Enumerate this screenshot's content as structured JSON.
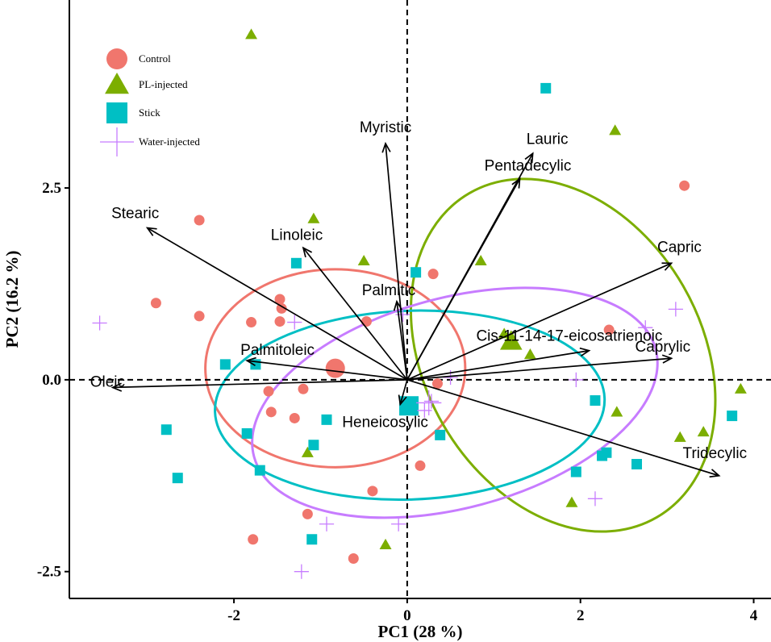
{
  "chart_data": {
    "type": "scatter",
    "title": "",
    "xlabel": "PC1 (28 %)",
    "ylabel": "PC2 (16.2 %)",
    "xlim": [
      -3.9,
      4.2
    ],
    "ylim": [
      -2.85,
      4.95
    ],
    "xticks": [
      -2,
      0,
      2,
      4
    ],
    "xtick_labels": [
      "-2",
      "0",
      "2",
      "4"
    ],
    "yticks": [
      -2.5,
      0.0,
      2.5
    ],
    "ytick_labels": [
      "-2.5",
      "0.0",
      "2.5"
    ],
    "grid": false,
    "legend_position": "top-left",
    "series": [
      {
        "name": "Control",
        "color": "#f0766d",
        "shape": "circle",
        "points": [
          [
            -2.4,
            2.08
          ],
          [
            -2.9,
            1.0
          ],
          [
            -2.4,
            0.83
          ],
          [
            -1.8,
            0.75
          ],
          [
            -1.47,
            1.05
          ],
          [
            -1.45,
            0.93
          ],
          [
            -1.47,
            0.76
          ],
          [
            -0.47,
            0.76
          ],
          [
            0.3,
            1.38
          ],
          [
            -1.6,
            -0.15
          ],
          [
            -1.57,
            -0.42
          ],
          [
            -1.3,
            -0.5
          ],
          [
            -1.2,
            -0.12
          ],
          [
            0.35,
            -0.05
          ],
          [
            0.15,
            -1.12
          ],
          [
            -0.4,
            -1.45
          ],
          [
            -1.15,
            -1.75
          ],
          [
            -1.78,
            -2.08
          ],
          [
            -0.62,
            -2.33
          ],
          [
            2.33,
            0.65
          ],
          [
            3.2,
            2.53
          ]
        ],
        "centroid": [
          -0.83,
          0.15
        ]
      },
      {
        "name": "PL-injected",
        "color": "#7cae00",
        "shape": "triangle",
        "points": [
          [
            -1.8,
            4.5
          ],
          [
            -1.08,
            2.1
          ],
          [
            -0.5,
            1.55
          ],
          [
            0.85,
            1.55
          ],
          [
            1.12,
            0.6
          ],
          [
            1.42,
            0.33
          ],
          [
            2.4,
            3.25
          ],
          [
            2.42,
            -0.42
          ],
          [
            1.9,
            -1.6
          ],
          [
            -1.15,
            -0.95
          ],
          [
            -0.25,
            -2.15
          ],
          [
            3.15,
            -0.75
          ],
          [
            3.42,
            -0.68
          ],
          [
            3.85,
            -0.12
          ]
        ],
        "centroid": [
          1.2,
          0.5
        ]
      },
      {
        "name": "Stick",
        "color": "#00bfc4",
        "shape": "square",
        "points": [
          [
            1.6,
            3.8
          ],
          [
            -1.28,
            1.52
          ],
          [
            0.1,
            1.4
          ],
          [
            -2.1,
            0.2
          ],
          [
            -1.75,
            0.2
          ],
          [
            -1.85,
            -0.7
          ],
          [
            -0.93,
            -0.52
          ],
          [
            -1.08,
            -0.85
          ],
          [
            -1.7,
            -1.18
          ],
          [
            -2.78,
            -0.65
          ],
          [
            -2.65,
            -1.28
          ],
          [
            -1.1,
            -2.08
          ],
          [
            0.38,
            -0.72
          ],
          [
            2.17,
            -0.27
          ],
          [
            1.95,
            -1.2
          ],
          [
            2.25,
            -0.99
          ],
          [
            2.3,
            -0.95
          ],
          [
            2.65,
            -1.1
          ],
          [
            3.75,
            -0.47
          ]
        ],
        "centroid": [
          0.02,
          -0.34
        ]
      },
      {
        "name": "Water-injected",
        "color": "#c77cff",
        "shape": "plus",
        "points": [
          [
            -3.55,
            0.74
          ],
          [
            -1.3,
            0.75
          ],
          [
            -0.05,
            0.85
          ],
          [
            0.5,
            0.03
          ],
          [
            1.95,
            0.0
          ],
          [
            0.2,
            -0.4
          ],
          [
            0.28,
            -0.28
          ],
          [
            2.75,
            0.68
          ],
          [
            3.1,
            0.92
          ],
          [
            2.17,
            -1.55
          ],
          [
            -0.1,
            -1.88
          ],
          [
            -0.93,
            -1.88
          ],
          [
            -1.22,
            -2.5
          ]
        ],
        "centroid": [
          0.25,
          -0.3
        ]
      }
    ],
    "ellipses": [
      {
        "group": "Control",
        "color": "#f0766d",
        "cx": -0.83,
        "cy": 0.15,
        "rx": 1.5,
        "ry": 1.29,
        "angle_deg": 0
      },
      {
        "group": "PL-injected",
        "color": "#7cae00",
        "cx": 1.8,
        "cy": 0.32,
        "rx": 1.6,
        "ry": 2.44,
        "angle_deg": 30
      },
      {
        "group": "Stick",
        "color": "#00bfc4",
        "cx": 0.03,
        "cy": -0.33,
        "rx": 2.25,
        "ry": 1.23,
        "angle_deg": 2
      },
      {
        "group": "Water-injected",
        "color": "#c77cff",
        "cx": 0.55,
        "cy": -0.3,
        "rx": 2.4,
        "ry": 1.37,
        "angle_deg": 15
      }
    ],
    "loadings": [
      {
        "name": "Myristic",
        "x": -0.25,
        "y": 3.08
      },
      {
        "name": "Lauric",
        "x": 1.45,
        "y": 2.95
      },
      {
        "name": "Pentadecylic",
        "x": 1.3,
        "y": 2.62
      },
      {
        "name": "Stearic",
        "x": -3.0,
        "y": 1.98
      },
      {
        "name": "Linoleic",
        "x": -1.2,
        "y": 1.72
      },
      {
        "name": "Capric",
        "x": 3.05,
        "y": 1.52
      },
      {
        "name": "Palmitic",
        "x": -0.12,
        "y": 1.02
      },
      {
        "name": "Cis-11-14-17-eicosatrienoic",
        "x": 2.1,
        "y": 0.38
      },
      {
        "name": "Caprylic",
        "x": 3.05,
        "y": 0.28
      },
      {
        "name": "Palmitoleic",
        "x": -1.85,
        "y": 0.25
      },
      {
        "name": "Oleic",
        "x": -3.4,
        "y": -0.1
      },
      {
        "name": "Heneicosylic",
        "x": -0.08,
        "y": -0.32
      },
      {
        "name": "Tridecylic",
        "x": 3.6,
        "y": -1.25
      }
    ]
  }
}
